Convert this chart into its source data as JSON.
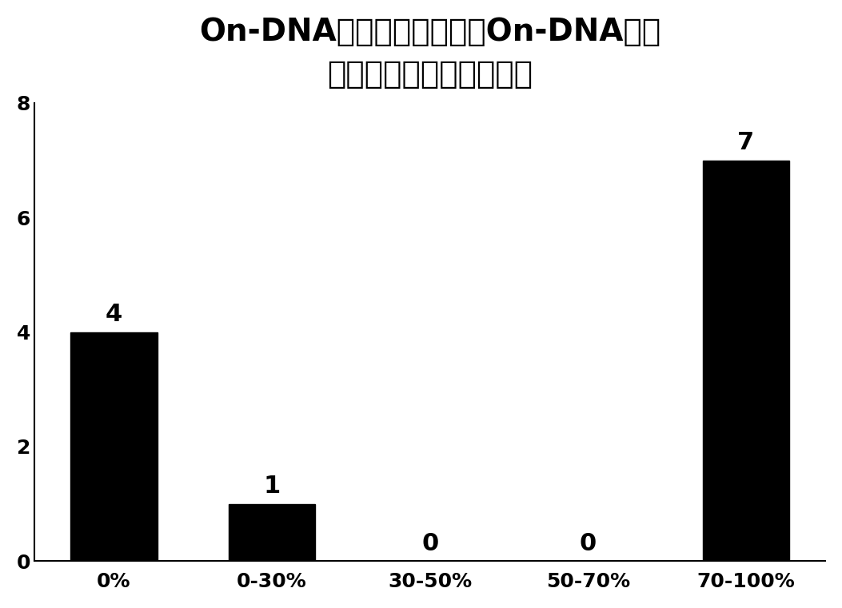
{
  "title_line1": "On-DNA芳基碘代物转化为On-DNA芳基",
  "title_line2": "叠氮化合物的转化率分布",
  "categories": [
    "0%",
    "0-30%",
    "30-50%",
    "50-70%",
    "70-100%"
  ],
  "values": [
    4,
    1,
    0,
    0,
    7
  ],
  "bar_color": "#000000",
  "background_color": "#ffffff",
  "ylim": [
    0,
    8
  ],
  "yticks": [
    0,
    2,
    4,
    6,
    8
  ],
  "title_fontsize": 28,
  "tick_fontsize": 18,
  "annotation_fontsize": 22,
  "bar_width": 0.55
}
